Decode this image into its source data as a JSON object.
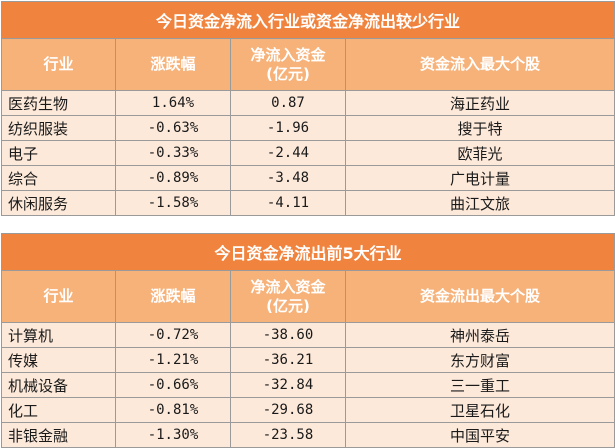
{
  "table_inflow": {
    "title": "今日资金净流入行业或资金净流出较少行业",
    "headers": [
      "行业",
      "涨跌幅",
      "净流入资金\n(亿元)",
      "资金流入最大个股"
    ],
    "rows": [
      [
        "医药生物",
        "1.64%",
        "0.87",
        "海正药业"
      ],
      [
        "纺织服装",
        "-0.63%",
        "-1.96",
        "搜于特"
      ],
      [
        "电子",
        "-0.33%",
        "-2.44",
        "欧菲光"
      ],
      [
        "综合",
        "-0.89%",
        "-3.48",
        "广电计量"
      ],
      [
        "休闲服务",
        "-1.58%",
        "-4.11",
        "曲江文旅"
      ]
    ]
  },
  "table_outflow": {
    "title": "今日资金净流出前5大行业",
    "headers": [
      "行业",
      "涨跌幅",
      "净流入资金\n(亿元)",
      "资金流出最大个股"
    ],
    "rows": [
      [
        "计算机",
        "-0.72%",
        "-38.60",
        "神州泰岳"
      ],
      [
        "传媒",
        "-1.21%",
        "-36.21",
        "东方财富"
      ],
      [
        "机械设备",
        "-0.66%",
        "-32.84",
        "三一重工"
      ],
      [
        "化工",
        "-0.81%",
        "-29.68",
        "卫星石化"
      ],
      [
        "非银金融",
        "-1.30%",
        "-23.58",
        "中国平安"
      ]
    ]
  },
  "colors": {
    "title_bg": "#f0843f",
    "header_bg": "#f7b27a",
    "row_bg": "#fde9da",
    "border": "#9a9a9a"
  }
}
